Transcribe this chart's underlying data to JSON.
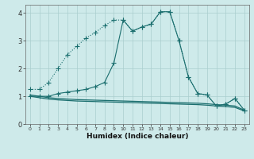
{
  "xlabel": "Humidex (Indice chaleur)",
  "background_color": "#ceeaea",
  "grid_color": "#aacece",
  "line_color": "#1a6e6e",
  "xlim": [
    -0.5,
    23.5
  ],
  "ylim": [
    0,
    4.3
  ],
  "xticks": [
    0,
    1,
    2,
    3,
    4,
    5,
    6,
    7,
    8,
    9,
    10,
    11,
    12,
    13,
    14,
    15,
    16,
    17,
    18,
    19,
    20,
    21,
    22,
    23
  ],
  "yticks": [
    0,
    1,
    2,
    3,
    4
  ],
  "series": [
    {
      "x": [
        0,
        1,
        2,
        3,
        4,
        5,
        6,
        7,
        8,
        9,
        10,
        11,
        12,
        13,
        14,
        15,
        16,
        17,
        18,
        19,
        20,
        21,
        22,
        23
      ],
      "y": [
        1.25,
        1.25,
        1.5,
        2.0,
        2.5,
        2.8,
        3.1,
        3.3,
        3.55,
        3.75,
        3.75,
        3.35,
        3.5,
        3.6,
        4.05,
        4.05,
        3.0,
        1.7,
        1.1,
        1.05,
        0.65,
        0.72,
        0.92,
        0.5
      ],
      "linestyle": "dotted",
      "marker": "+",
      "markersize": 4,
      "linewidth": 0.8
    },
    {
      "x": [
        0,
        1,
        2,
        3,
        4,
        5,
        6,
        7,
        8,
        9,
        10,
        11,
        12,
        13,
        14,
        15,
        16,
        17,
        18,
        19,
        20,
        21,
        22,
        23
      ],
      "y": [
        1.0,
        1.0,
        1.0,
        1.1,
        1.15,
        1.2,
        1.25,
        1.35,
        1.5,
        2.2,
        3.75,
        3.35,
        3.5,
        3.6,
        4.05,
        4.05,
        3.0,
        1.7,
        1.1,
        1.05,
        0.65,
        0.72,
        0.92,
        0.5
      ],
      "linestyle": "-",
      "marker": "+",
      "markersize": 4,
      "linewidth": 0.8
    },
    {
      "x": [
        0,
        1,
        2,
        3,
        4,
        5,
        6,
        7,
        8,
        9,
        10,
        11,
        12,
        13,
        14,
        15,
        16,
        17,
        18,
        19,
        20,
        21,
        22,
        23
      ],
      "y": [
        1.05,
        1.0,
        0.95,
        0.92,
        0.9,
        0.88,
        0.87,
        0.86,
        0.85,
        0.84,
        0.83,
        0.82,
        0.81,
        0.8,
        0.79,
        0.78,
        0.77,
        0.76,
        0.75,
        0.73,
        0.7,
        0.68,
        0.65,
        0.5
      ],
      "linestyle": "-",
      "marker": null,
      "markersize": 0,
      "linewidth": 0.9
    },
    {
      "x": [
        0,
        1,
        2,
        3,
        4,
        5,
        6,
        7,
        8,
        9,
        10,
        11,
        12,
        13,
        14,
        15,
        16,
        17,
        18,
        19,
        20,
        21,
        22,
        23
      ],
      "y": [
        1.0,
        0.95,
        0.9,
        0.87,
        0.85,
        0.83,
        0.82,
        0.81,
        0.8,
        0.79,
        0.78,
        0.77,
        0.76,
        0.75,
        0.74,
        0.73,
        0.72,
        0.71,
        0.7,
        0.68,
        0.65,
        0.63,
        0.6,
        0.47
      ],
      "linestyle": "-",
      "marker": null,
      "markersize": 0,
      "linewidth": 0.9
    }
  ]
}
